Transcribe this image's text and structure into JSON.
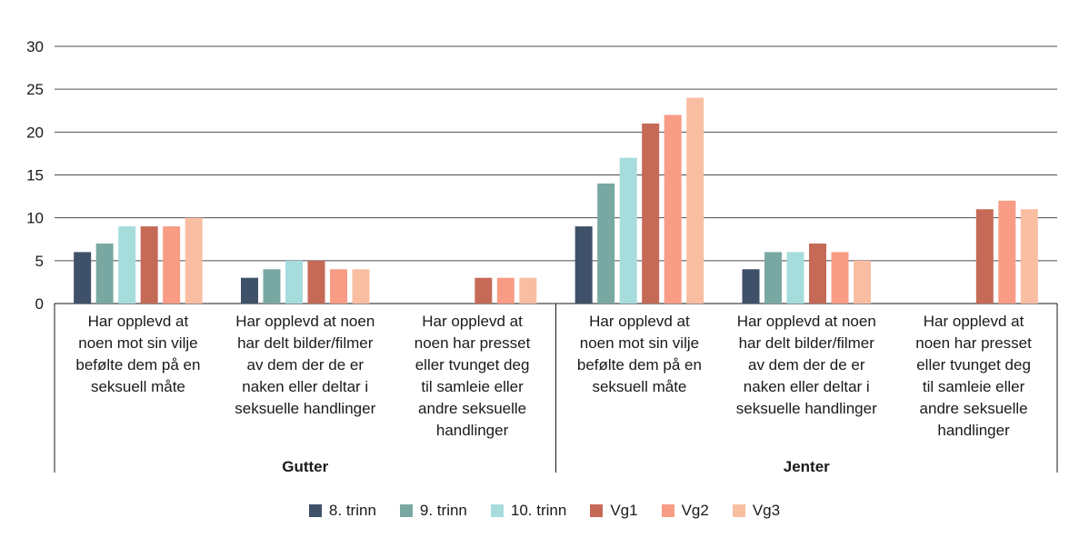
{
  "chart_data": {
    "type": "bar",
    "title": "",
    "xlabel": "",
    "ylabel": "",
    "ylim": [
      0,
      30
    ],
    "yticks": [
      "0",
      "5",
      "10",
      "15",
      "20",
      "25",
      "30"
    ],
    "grid": true,
    "legend_position": "bottom",
    "groups": [
      {
        "label": "Gutter",
        "categories": [
          0,
          1,
          2
        ]
      },
      {
        "label": "Jenter",
        "categories": [
          3,
          4,
          5
        ]
      }
    ],
    "categories": [
      "Har opplevd at noen mot sin vilje befølte dem på en seksuell måte",
      "Har opplevd at noen har delt bilder/filmer av dem der de er naken eller deltar i seksuelle handlinger",
      "Har opplevd at noen har presset eller tvunget deg til samleie eller andre seksuelle handlinger",
      "Har opplevd at noen mot sin vilje befølte dem på en seksuell måte",
      "Har opplevd at noen har delt bilder/filmer av dem der de er naken eller deltar i seksuelle handlinger",
      "Har opplevd at noen har presset eller tvunget deg til samleie eller andre seksuelle handlinger"
    ],
    "category_lines": [
      [
        "Har opplevd at",
        "noen mot sin vilje",
        "befølte dem på en",
        "seksuell måte"
      ],
      [
        "Har opplevd at noen",
        "har delt bilder/filmer",
        "av dem der de er",
        "naken eller deltar i",
        "seksuelle handlinger"
      ],
      [
        "Har opplevd at",
        "noen har presset",
        "eller tvunget deg",
        "til samleie eller",
        "andre seksuelle",
        "handlinger"
      ],
      [
        "Har opplevd at",
        "noen mot sin vilje",
        "befølte dem på en",
        "seksuell måte"
      ],
      [
        "Har opplevd at noen",
        "har delt bilder/filmer",
        "av dem der de er",
        "naken eller deltar i",
        "seksuelle handlinger"
      ],
      [
        "Har opplevd at",
        "noen har presset",
        "eller tvunget deg",
        "til samleie eller",
        "andre seksuelle",
        "handlinger"
      ]
    ],
    "series": [
      {
        "name": "8. trinn",
        "color": "#3f5069",
        "values": [
          6,
          3,
          null,
          9,
          4,
          null
        ]
      },
      {
        "name": "9. trinn",
        "color": "#79a8a2",
        "values": [
          7,
          4,
          null,
          14,
          6,
          null
        ]
      },
      {
        "name": "10. trinn",
        "color": "#a6dcdc",
        "values": [
          9,
          5,
          null,
          17,
          6,
          null
        ]
      },
      {
        "name": "Vg1",
        "color": "#c66a58",
        "values": [
          9,
          5,
          3,
          21,
          7,
          11
        ]
      },
      {
        "name": "Vg2",
        "color": "#f89c86",
        "values": [
          9,
          4,
          3,
          22,
          6,
          12
        ]
      },
      {
        "name": "Vg3",
        "color": "#f9bea2",
        "values": [
          10,
          4,
          3,
          24,
          5,
          11
        ]
      }
    ]
  }
}
